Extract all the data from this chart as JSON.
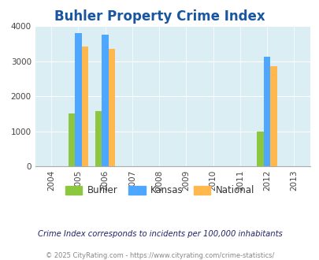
{
  "title": "Buhler Property Crime Index",
  "years": [
    2004,
    2005,
    2006,
    2007,
    2008,
    2009,
    2010,
    2011,
    2012,
    2013
  ],
  "bar_data": {
    "2005": {
      "buhler": 1500,
      "kansas": 3800,
      "national": 3420
    },
    "2006": {
      "buhler": 1575,
      "kansas": 3750,
      "national": 3350
    },
    "2012": {
      "buhler": 1000,
      "kansas": 3130,
      "national": 2850
    }
  },
  "colors": {
    "buhler": "#8dc63f",
    "kansas": "#4da6ff",
    "national": "#ffb84d"
  },
  "ylim": [
    0,
    4000
  ],
  "yticks": [
    0,
    1000,
    2000,
    3000,
    4000
  ],
  "bg_color": "#daeef3",
  "title_color": "#1a56a0",
  "title_fontsize": 12,
  "legend_labels": [
    "Buhler",
    "Kansas",
    "National"
  ],
  "footnote1": "Crime Index corresponds to incidents per 100,000 inhabitants",
  "footnote2": "© 2025 CityRating.com - https://www.cityrating.com/crime-statistics/",
  "bar_width": 0.25
}
